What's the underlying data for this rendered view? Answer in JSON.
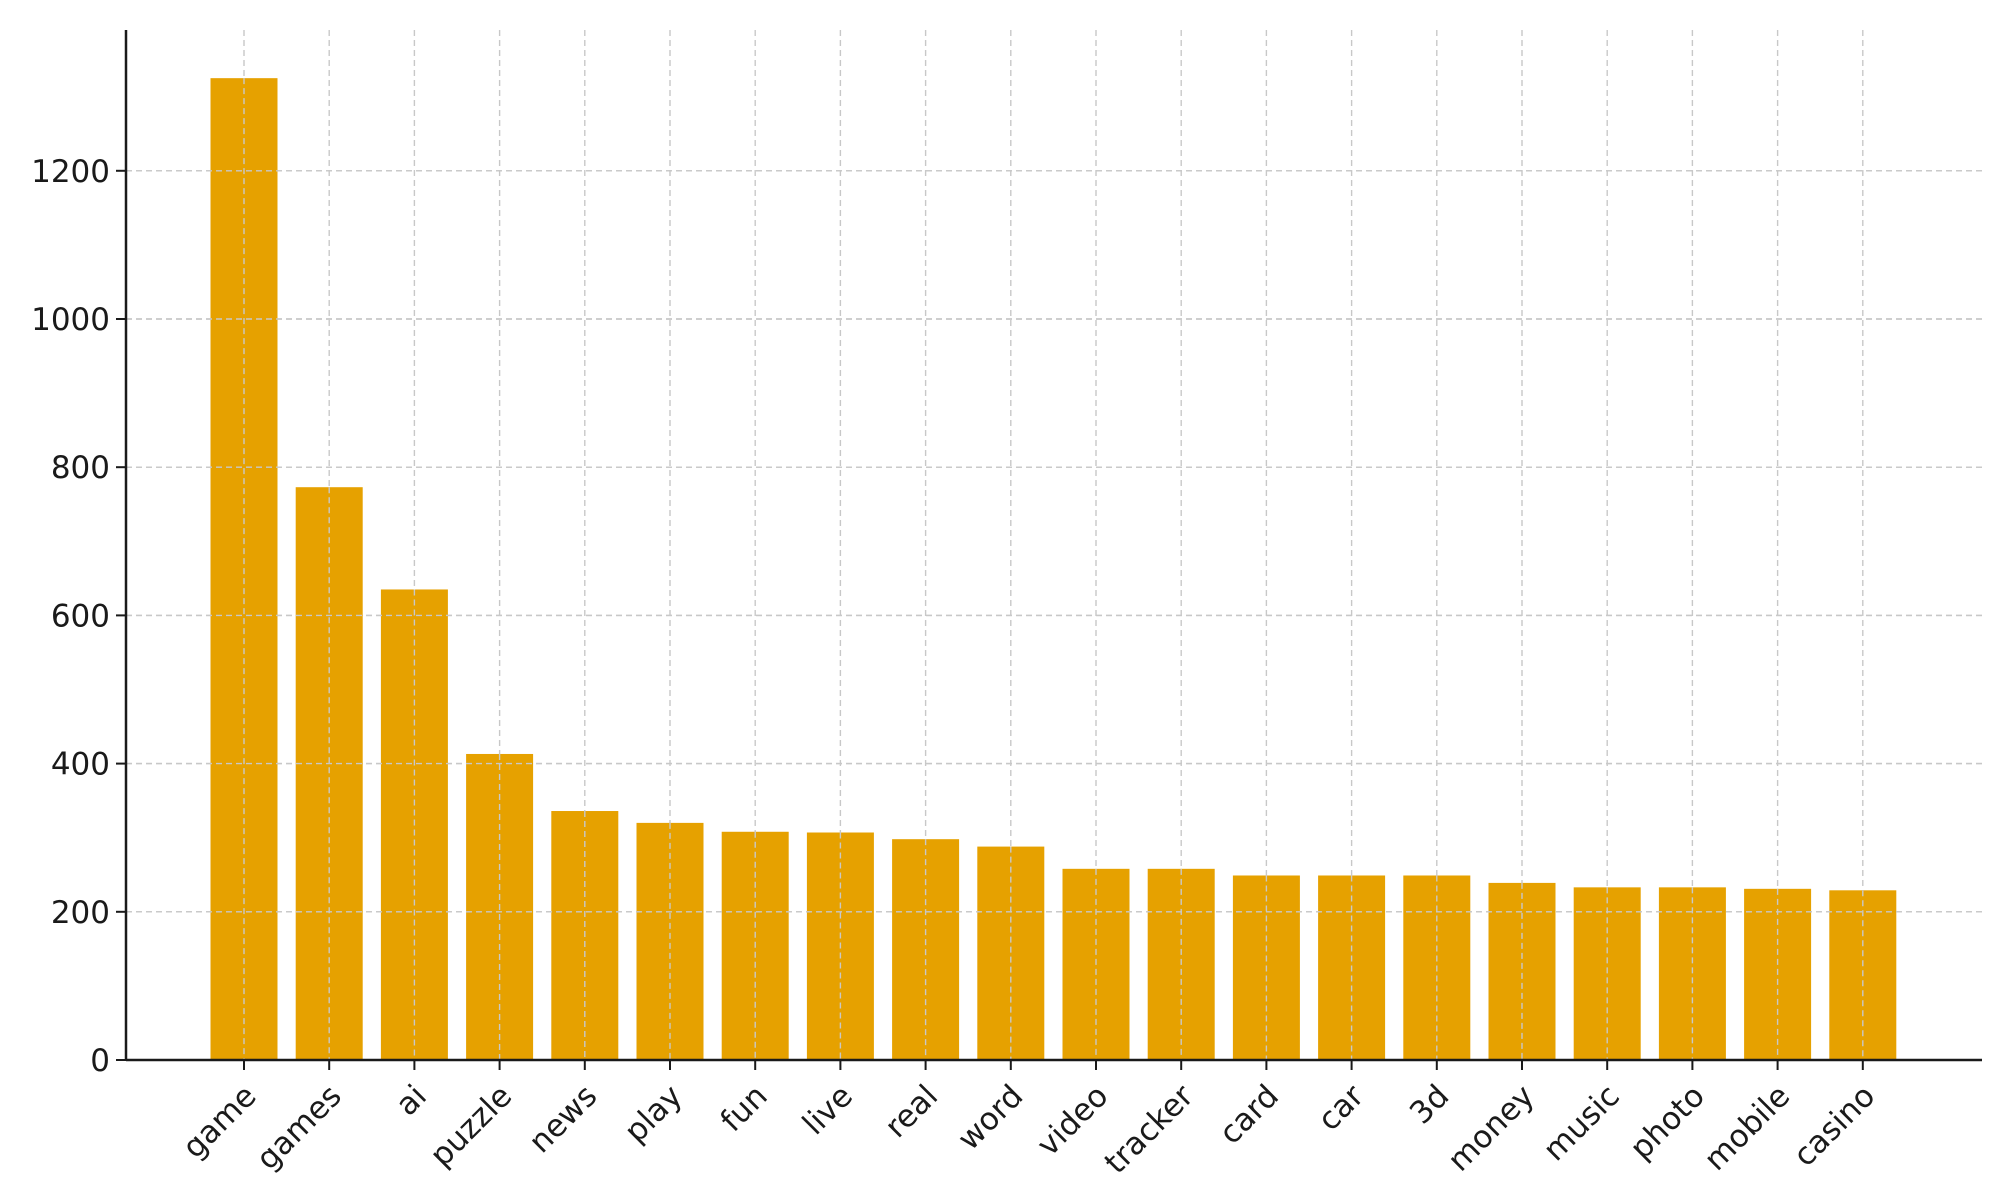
{
  "chart_data": {
    "type": "bar",
    "categories": [
      "game",
      "games",
      "ai",
      "puzzle",
      "news",
      "play",
      "fun",
      "live",
      "real",
      "word",
      "video",
      "tracker",
      "card",
      "car",
      "3d",
      "money",
      "music",
      "photo",
      "mobile",
      "casino"
    ],
    "values": [
      1325,
      773,
      635,
      413,
      336,
      320,
      308,
      307,
      298,
      288,
      258,
      258,
      249,
      249,
      249,
      239,
      233,
      233,
      231,
      229
    ],
    "title": "",
    "xlabel": "",
    "ylabel": "",
    "ylim": [
      0,
      1390
    ],
    "yticks": [
      0,
      200,
      400,
      600,
      800,
      1000,
      1200
    ],
    "grid": true,
    "bar_color": "#e6a100",
    "grid_color": "#c8c8c8",
    "axis_color": "#1a1a1a",
    "legend": "none"
  }
}
